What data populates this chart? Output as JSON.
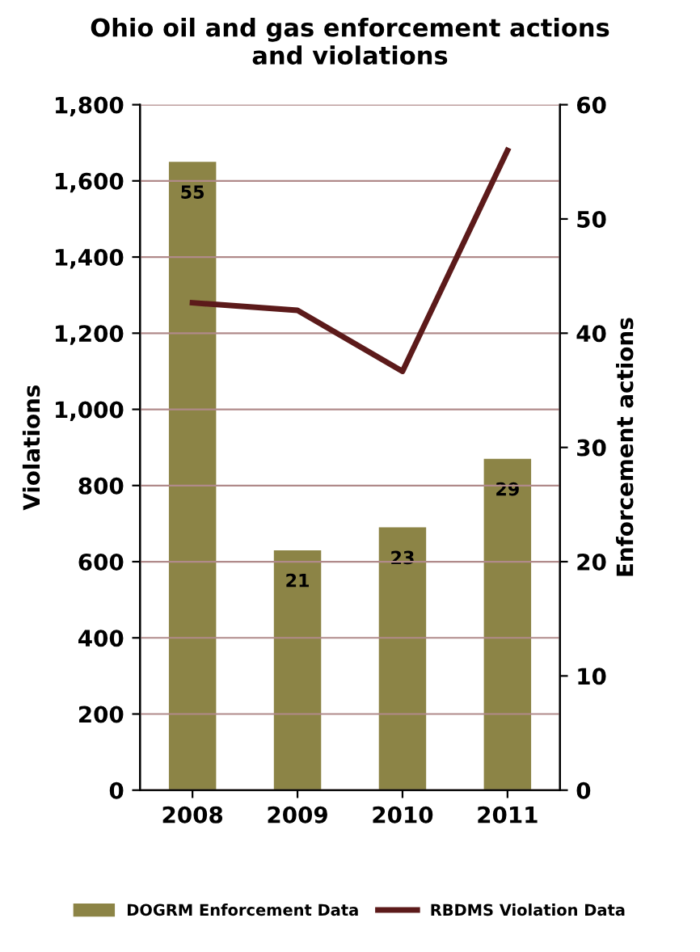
{
  "chart_data": {
    "type": "bar",
    "title": "Ohio oil and gas enforcement actions\nand violations",
    "categories": [
      "2008",
      "2009",
      "2010",
      "2011"
    ],
    "series": [
      {
        "name": "DOGRM Enforcement Data",
        "axis": "y2",
        "color": "#8c8446",
        "values": [
          55,
          21,
          23,
          29
        ],
        "value_labels": [
          "55",
          "21",
          "23",
          "29"
        ]
      },
      {
        "name": "RBDMS Violation Data",
        "type": "line",
        "color": "#5c1a1a",
        "values": [
          1280,
          1260,
          1100,
          1680
        ]
      }
    ],
    "ylabel": "Violations",
    "y2label": "Enforcement actions",
    "ylim": [
      0,
      1800
    ],
    "yticks": [
      {
        "value": 0,
        "label": "0"
      },
      {
        "value": 200,
        "label": "200"
      },
      {
        "value": 400,
        "label": "400"
      },
      {
        "value": 600,
        "label": "600"
      },
      {
        "value": 800,
        "label": "800"
      },
      {
        "value": 1000,
        "label": "1,000"
      },
      {
        "value": 1200,
        "label": "1,200"
      },
      {
        "value": 1400,
        "label": "1,400"
      },
      {
        "value": 1600,
        "label": "1,600"
      },
      {
        "value": 1800,
        "label": "1,800"
      }
    ],
    "y2lim": [
      0,
      60
    ],
    "y2ticks": [
      0,
      10,
      20,
      30,
      40,
      50,
      60
    ],
    "grid": "y",
    "legend": "bottom",
    "marker": "none",
    "line_style": "solid"
  }
}
